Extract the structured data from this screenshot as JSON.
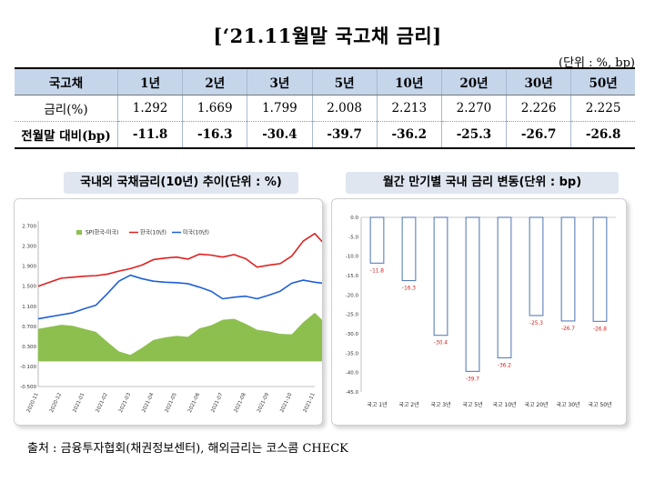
{
  "header": {
    "title": "[‘21.11월말 국고채 금리]",
    "unit": "(단위 : %, bp)"
  },
  "table": {
    "columns": [
      "국고채",
      "1년",
      "2년",
      "3년",
      "5년",
      "10년",
      "20년",
      "30년",
      "50년"
    ],
    "rows": [
      {
        "label": "금리(%)",
        "cells": [
          "1.292",
          "1.669",
          "1.799",
          "2.008",
          "2.213",
          "2.270",
          "2.226",
          "2.225"
        ]
      },
      {
        "label": "전월말 대비(bp)",
        "cells": [
          "-11.8",
          "-16.3",
          "-30.4",
          "-39.7",
          "-36.2",
          "-25.3",
          "-26.7",
          "-26.8"
        ]
      }
    ]
  },
  "left_panel": {
    "title": "국내외 국채금리(10년) 추이(단위 : %)"
  },
  "right_panel": {
    "title": "월간 만기별 국내 금리 변동(단위 : bp)"
  },
  "footer": {
    "source": "출처 : 금융투자협회(채권정보센터), 해외금리는 코스콤 CHECK"
  },
  "chart_data": [
    {
      "type": "line",
      "title": "국내외 국채금리(10년) 추이(단위 : %)",
      "legend": [
        "SP(한국-미국)",
        "한국(10년)",
        "미국(10년)"
      ],
      "colors": {
        "spread": "#8dbf4f",
        "korea": "#e02020",
        "us": "#1f5fd6"
      },
      "yticks": [
        "2.700",
        "2.300",
        "1.900",
        "1.500",
        "1.100",
        "0.700",
        "0.300",
        "-0.100",
        "-0.500"
      ],
      "ylim": [
        -0.5,
        2.8
      ],
      "xticks": [
        "2020-11",
        "2020-12",
        "2021-01",
        "2021-02",
        "2021-03",
        "2021-04",
        "2021-05",
        "2021-06",
        "2021-07",
        "2021-08",
        "2021-09",
        "2021-10",
        "2021-11"
      ],
      "x": [
        0,
        0.5,
        1,
        1.5,
        2,
        2.5,
        3,
        3.5,
        4,
        4.5,
        5,
        5.5,
        6,
        6.5,
        7,
        7.5,
        8,
        8.5,
        9,
        9.5,
        10,
        10.5,
        11,
        11.5,
        12,
        12.5,
        13
      ],
      "series": [
        {
          "name": "한국(10년)",
          "values": [
            1.5,
            1.58,
            1.66,
            1.68,
            1.7,
            1.71,
            1.74,
            1.8,
            1.85,
            1.92,
            2.03,
            2.06,
            2.08,
            2.04,
            2.14,
            2.12,
            2.08,
            2.13,
            2.05,
            1.88,
            1.92,
            1.95,
            2.1,
            2.4,
            2.55,
            2.3,
            2.2
          ]
        },
        {
          "name": "미국(10년)",
          "values": [
            0.85,
            0.89,
            0.93,
            0.97,
            1.05,
            1.12,
            1.35,
            1.6,
            1.72,
            1.65,
            1.6,
            1.58,
            1.57,
            1.55,
            1.48,
            1.4,
            1.25,
            1.28,
            1.3,
            1.25,
            1.32,
            1.4,
            1.56,
            1.62,
            1.58,
            1.55,
            1.45
          ]
        },
        {
          "name": "SP(한국-미국)",
          "values": [
            0.65,
            0.69,
            0.73,
            0.71,
            0.65,
            0.59,
            0.39,
            0.2,
            0.13,
            0.27,
            0.43,
            0.48,
            0.51,
            0.49,
            0.66,
            0.72,
            0.83,
            0.85,
            0.75,
            0.63,
            0.6,
            0.55,
            0.54,
            0.78,
            0.97,
            0.75,
            0.75
          ]
        }
      ]
    },
    {
      "type": "bar",
      "title": "월간 만기별 국내 금리 변동(단위 : bp)",
      "categories": [
        "국고 1년",
        "국고 2년",
        "국고 3년",
        "국고 5년",
        "국고 10년",
        "국고 20년",
        "국고 30년",
        "국고 50년"
      ],
      "values": [
        -11.8,
        -16.3,
        -30.4,
        -39.7,
        -36.2,
        -25.3,
        -26.7,
        -26.8
      ],
      "data_labels": [
        "-11.8",
        "-16.3",
        "-30.4",
        "-39.7",
        "-36.2",
        "-25.3",
        "-26.7",
        "-26.8"
      ],
      "ylim": [
        -45.0,
        0.0
      ],
      "yticks": [
        "0.0",
        "-5.0",
        "-10.0",
        "-15.0",
        "-20.0",
        "-25.0",
        "-30.0",
        "-35.0",
        "-40.0",
        "-45.0"
      ],
      "bar_color": "#ffffff",
      "border_color": "#5a7fb8",
      "label_color": "#d02020"
    }
  ]
}
